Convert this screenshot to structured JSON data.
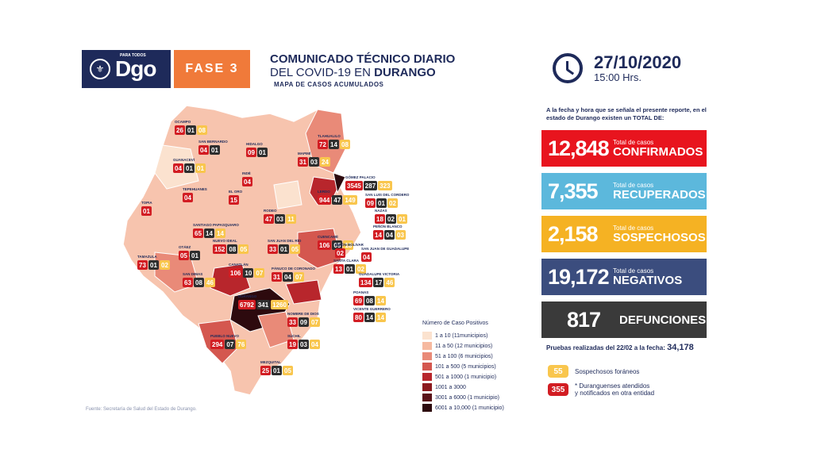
{
  "header": {
    "logo_small": "PARA TODOS",
    "logo_text": "Dgo",
    "fase": "FASE 3",
    "title_line1": "COMUNICADO TÉCNICO DIARIO",
    "title_line2_a": "DEL COVID-19 EN ",
    "title_line2_b": "DURANGO",
    "subtitle": "MAPA DE CASOS ACUMULADOS",
    "date": "27/10/2020",
    "time": "15:00 Hrs."
  },
  "summary": {
    "intro": "A la fecha y hora que se señala el presente reporte, en el estado de Durango existen un TOTAL DE:",
    "confirmados": {
      "value": "12,848",
      "small": "Total de casos",
      "label": "CONFIRMADOS"
    },
    "recuperados": {
      "value": "7,355",
      "small": "Total de casos",
      "label": "RECUPERADOS"
    },
    "sospechosos": {
      "value": "2,158",
      "small": "Total de casos",
      "label": "SOSPECHOSOS"
    },
    "negativos": {
      "value": "19,172",
      "small": "Total de casos",
      "label": "NEGATIVOS"
    },
    "defunciones": {
      "value": "817",
      "label": "DEFUNCIONES"
    },
    "pruebas_label": "Pruebas realizadas del 22/02 a la fecha: ",
    "pruebas_value": "34,178"
  },
  "legend2": {
    "a_num": "55",
    "a_text": "Sospechosos foráneos",
    "b_num": "355",
    "b_text_1": "* Duranguenses atendidos",
    "b_text_2": "y notificados en otra entidad"
  },
  "map_legend": {
    "title": "Número de Caso Positivos",
    "rows": [
      {
        "range": "1 a 10",
        "note": "(11municipios)",
        "color": "#fbe2cf"
      },
      {
        "range": "11 a 50",
        "note": "(12 municipios)",
        "color": "#f6b9a0"
      },
      {
        "range": "51 a 100",
        "note": "(6 municipios)",
        "color": "#e98a78"
      },
      {
        "range": "101 a 500",
        "note": "(5 municipios)",
        "color": "#d4574f"
      },
      {
        "range": "501 a 1000",
        "note": "(1 municipio)",
        "color": "#b8262c"
      },
      {
        "range": "1001 a 3000",
        "note": "",
        "color": "#8c1a1f"
      },
      {
        "range": "3001 a 6000",
        "note": "(1 municipio)",
        "color": "#5a1218"
      },
      {
        "range": "6001 a 10,000",
        "note": "(1 municipio)",
        "color": "#2d0a0e"
      }
    ]
  },
  "fuente": "Fuente: Secretaría de Salud del Estado de Durango.",
  "municipios": [
    {
      "name": "OCAMPO",
      "a": "26",
      "b": "01",
      "c": "08"
    },
    {
      "name": "SAN BERNARDO",
      "a": "04",
      "b": "01",
      "c": ""
    },
    {
      "name": "GUANACEVÍ",
      "a": "04",
      "b": "01",
      "c": "01"
    },
    {
      "name": "HIDALGO",
      "a": "09",
      "b": "01",
      "c": ""
    },
    {
      "name": "MAPIMÍ",
      "a": "31",
      "b": "03",
      "c": "24"
    },
    {
      "name": "TLAHUALILO",
      "a": "72",
      "b": "14",
      "c": "08"
    },
    {
      "name": "INDÉ",
      "a": "04",
      "b": "",
      "c": ""
    },
    {
      "name": "GÓMEZ PALACIO",
      "a": "3545",
      "b": "287",
      "c": "323"
    },
    {
      "name": "TEPEHUANES",
      "a": "04",
      "b": "",
      "c": ""
    },
    {
      "name": "EL ORO",
      "a": "15",
      "b": "",
      "c": ""
    },
    {
      "name": "LERDO",
      "a": "944",
      "b": "47",
      "c": "149"
    },
    {
      "name": "SAN LUIS DEL CORDERO",
      "a": "09",
      "b": "01",
      "c": "02"
    },
    {
      "name": "TOPIA",
      "a": "01",
      "b": "",
      "c": ""
    },
    {
      "name": "RODEO",
      "a": "47",
      "b": "03",
      "c": "11"
    },
    {
      "name": "NAZAS",
      "a": "18",
      "b": "02",
      "c": "01"
    },
    {
      "name": "SANTIAGO PAPASQUIARO",
      "a": "65",
      "b": "14",
      "c": "14"
    },
    {
      "name": "PEÑÓN BLANCO",
      "a": "14",
      "b": "04",
      "c": "03"
    },
    {
      "name": "NUEVO IDEAL",
      "a": "152",
      "b": "08",
      "c": "05"
    },
    {
      "name": "SAN JUAN DEL RÍO",
      "a": "33",
      "b": "01",
      "c": "05"
    },
    {
      "name": "CUENCAMÉ",
      "a": "106",
      "b": "05",
      "c": "18"
    },
    {
      "name": "OTÁEZ",
      "a": "05",
      "b": "01",
      "c": ""
    },
    {
      "name": "SAN JUAN DE GUADALUPE",
      "a": "04",
      "b": "",
      "c": ""
    },
    {
      "name": "SIMÓN BOLÍVAR",
      "a": "02",
      "b": "",
      "c": ""
    },
    {
      "name": "TAMAZULA",
      "a": "73",
      "b": "01",
      "c": "02"
    },
    {
      "name": "SANTA CLARA",
      "a": "13",
      "b": "01",
      "c": "02"
    },
    {
      "name": "CANATLÁN",
      "a": "106",
      "b": "10",
      "c": "07"
    },
    {
      "name": "PÁNUCO DE CORONADO",
      "a": "31",
      "b": "04",
      "c": "07"
    },
    {
      "name": "SAN DIMAS",
      "a": "63",
      "b": "08",
      "c": "46"
    },
    {
      "name": "GUADALUPE VICTORIA",
      "a": "134",
      "b": "17",
      "c": "46"
    },
    {
      "name": "DURANGO",
      "a": "6792",
      "b": "341",
      "c": "1260"
    },
    {
      "name": "POANAS",
      "a": "69",
      "b": "08",
      "c": "14"
    },
    {
      "name": "VICENTE GUERRERO",
      "a": "80",
      "b": "14",
      "c": "14"
    },
    {
      "name": "NOMBRE DE DIOS",
      "a": "33",
      "b": "09",
      "c": "07"
    },
    {
      "name": "SÚCHIL",
      "a": "19",
      "b": "03",
      "c": "04"
    },
    {
      "name": "PUEBLO NUEVO",
      "a": "294",
      "b": "07",
      "c": "76"
    },
    {
      "name": "MEZQUITAL",
      "a": "25",
      "b": "01",
      "c": "05"
    }
  ]
}
